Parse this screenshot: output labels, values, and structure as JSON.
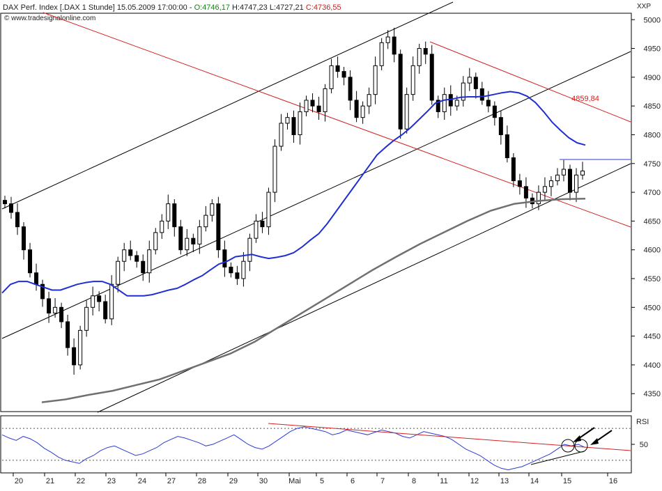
{
  "header": {
    "instrument": "DAX Perf. Index [.DAX  1 Stunde] 15.05.2009 17:00:00 - ",
    "open": "O:4746,17",
    "high": " H:4747,23",
    "low": " L:4727,21",
    "close": " C:4736,55",
    "source": "www.tradesignalonline.com",
    "scale_label": "XXP"
  },
  "colors": {
    "ma_fast": "#1f2fd1",
    "ma_slow": "#707070",
    "trend_red": "#d42020",
    "trend_black": "#000000",
    "open_text": "#0a8a0a",
    "close_text": "#c81e1e",
    "rsi_line": "#2b3bd6"
  },
  "chart_data": [
    {
      "type": "candlestick",
      "timeframe": "1 Stunde",
      "ylim": [
        4320,
        5010
      ],
      "y_ticks": [
        4350,
        4400,
        4450,
        4500,
        4550,
        4600,
        4650,
        4700,
        4750,
        4800,
        4850,
        4900,
        4950,
        5000
      ],
      "x_ticks": [
        "20",
        "21",
        "22",
        "23",
        "24",
        "27",
        "28",
        "29",
        "30",
        "Mai",
        "5",
        "6",
        "7",
        "8",
        "11",
        "12",
        "13",
        "14",
        "15",
        "16"
      ],
      "grid": false,
      "closes": [
        4680,
        4665,
        4640,
        4600,
        4560,
        4540,
        4515,
        4490,
        4500,
        4475,
        4430,
        4400,
        4460,
        4500,
        4520,
        4510,
        4480,
        4540,
        4580,
        4600,
        4590,
        4580,
        4560,
        4600,
        4630,
        4650,
        4680,
        4640,
        4600,
        4620,
        4610,
        4640,
        4660,
        4680,
        4600,
        4570,
        4560,
        4550,
        4580,
        4620,
        4650,
        4640,
        4700,
        4780,
        4820,
        4830,
        4800,
        4840,
        4860,
        4850,
        4840,
        4880,
        4920,
        4910,
        4900,
        4860,
        4830,
        4850,
        4870,
        4920,
        4960,
        4970,
        4940,
        4810,
        4870,
        4920,
        4950,
        4940,
        4860,
        4840,
        4870,
        4850,
        4860,
        4890,
        4900,
        4880,
        4860,
        4850,
        4830,
        4800,
        4760,
        4720,
        4710,
        4690,
        4680,
        4700,
        4710,
        4720,
        4730,
        4740,
        4700,
        4730,
        4737
      ],
      "annotations": [
        {
          "text": "4859,84"
        }
      ],
      "horizontal_level": 4757,
      "series": [
        {
          "name": "",
          "kind": "moving-average-fast",
          "values": [
            4525,
            4540,
            4545,
            4545,
            4540,
            4535,
            4530,
            4530,
            4535,
            4540,
            4543,
            4545,
            4545,
            4540,
            4530,
            4520,
            4520,
            4520,
            4522,
            4526,
            4530,
            4533,
            4540,
            4548,
            4555,
            4565,
            4575,
            4580,
            4588,
            4590,
            4592,
            4588,
            4585,
            4587,
            4590,
            4595,
            4605,
            4617,
            4628,
            4645,
            4665,
            4685,
            4705,
            4725,
            4745,
            4765,
            4778,
            4790,
            4800,
            4812,
            4826,
            4840,
            4855,
            4860,
            4862,
            4865,
            4866,
            4866,
            4867,
            4870,
            4873,
            4875,
            4873,
            4867,
            4856,
            4840,
            4822,
            4808,
            4795,
            4786,
            4782
          ]
        },
        {
          "name": "",
          "kind": "moving-average-slow",
          "values": [
            4335,
            4340,
            4348,
            4355,
            4365,
            4375,
            4390,
            4405,
            4420,
            4440,
            4465,
            4490,
            4515,
            4540,
            4565,
            4588,
            4610,
            4630,
            4650,
            4668,
            4680,
            4685,
            4688,
            4689
          ]
        }
      ]
    },
    {
      "type": "line",
      "title": "RSI",
      "y_ticks": [
        50
      ],
      "ylim": [
        15,
        85
      ],
      "levels": [
        30,
        70
      ],
      "values": [
        62,
        58,
        55,
        60,
        57,
        52,
        45,
        40,
        34,
        30,
        28,
        26,
        32,
        36,
        42,
        46,
        48,
        44,
        40,
        36,
        38,
        42,
        46,
        52,
        56,
        60,
        58,
        55,
        52,
        48,
        50,
        54,
        58,
        62,
        56,
        50,
        46,
        44,
        48,
        54,
        60,
        66,
        70,
        72,
        70,
        68,
        66,
        62,
        64,
        68,
        66,
        64,
        62,
        65,
        68,
        66,
        64,
        60,
        58,
        62,
        66,
        64,
        62,
        60,
        56,
        50,
        44,
        40,
        36,
        30,
        24,
        20,
        18,
        20,
        22,
        26,
        30,
        34,
        38,
        44,
        50,
        48,
        50,
        46
      ]
    }
  ]
}
